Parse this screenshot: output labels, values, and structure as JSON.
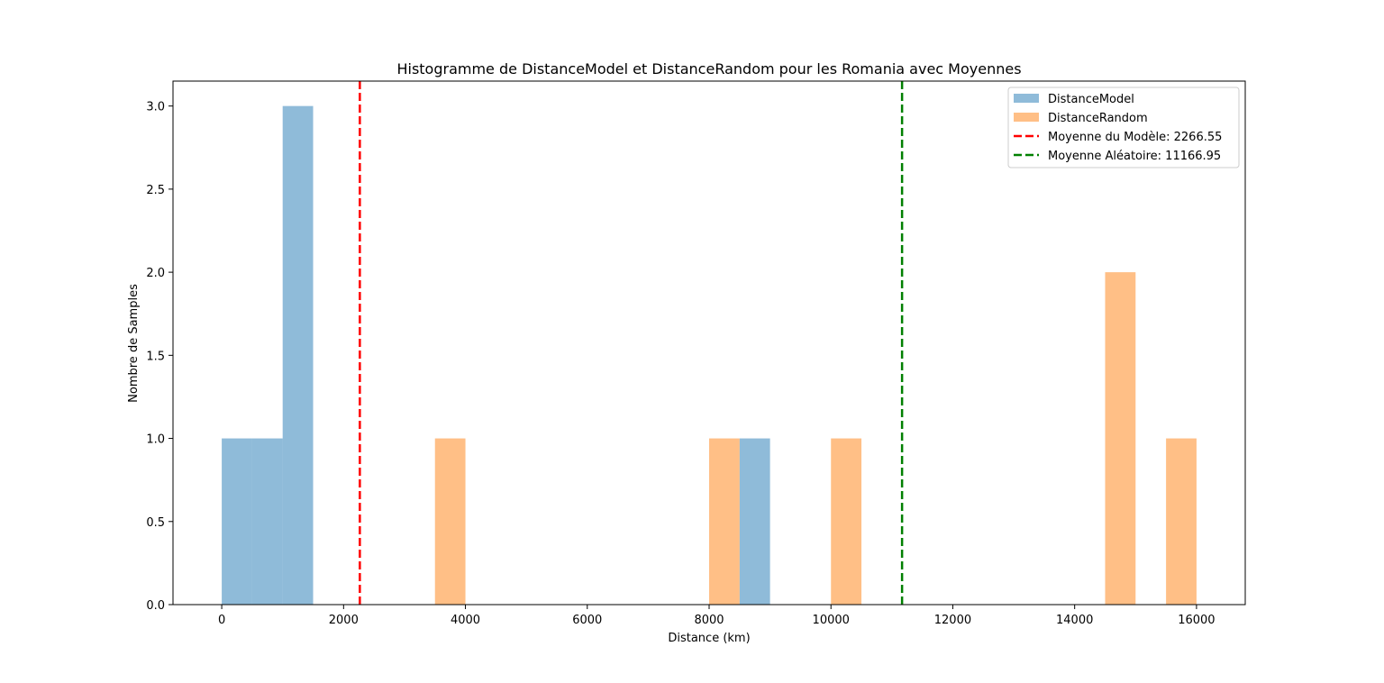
{
  "chart_data": {
    "type": "bar",
    "title": "Histogramme de DistanceModel et DistanceRandom pour les Romania avec Moyennes",
    "xlabel": "Distance (km)",
    "ylabel": "Nombre de Samples",
    "xlim": [
      -800,
      16800
    ],
    "ylim": [
      0,
      3.15
    ],
    "xticks": [
      0,
      2000,
      4000,
      6000,
      8000,
      10000,
      12000,
      14000,
      16000
    ],
    "xtick_labels": [
      "0",
      "2000",
      "4000",
      "6000",
      "8000",
      "10000",
      "12000",
      "14000",
      "16000"
    ],
    "yticks": [
      0,
      0.5,
      1.0,
      1.5,
      2.0,
      2.5,
      3.0
    ],
    "ytick_labels": [
      "0.0",
      "0.5",
      "1.0",
      "1.5",
      "2.0",
      "2.5",
      "3.0"
    ],
    "grid": false,
    "legend_position": "top-right",
    "series": [
      {
        "name": "DistanceModel",
        "color": "#1f77b4",
        "alpha": 0.5,
        "bins": [
          {
            "x0": 0,
            "x1": 500,
            "count": 1
          },
          {
            "x0": 500,
            "x1": 1000,
            "count": 1
          },
          {
            "x0": 1000,
            "x1": 1500,
            "count": 3
          },
          {
            "x0": 8500,
            "x1": 9000,
            "count": 1
          }
        ]
      },
      {
        "name": "DistanceRandom",
        "color": "#ff7f0e",
        "alpha": 0.5,
        "bins": [
          {
            "x0": 3500,
            "x1": 4000,
            "count": 1
          },
          {
            "x0": 8000,
            "x1": 8500,
            "count": 1
          },
          {
            "x0": 10000,
            "x1": 10500,
            "count": 1
          },
          {
            "x0": 14500,
            "x1": 15000,
            "count": 2
          },
          {
            "x0": 15500,
            "x1": 16000,
            "count": 1
          }
        ]
      }
    ],
    "reference_lines": [
      {
        "name": "Moyenne du Modèle: 2266.55",
        "value": 2266.55,
        "color": "#ff0000",
        "style": "dashed"
      },
      {
        "name": "Moyenne Aléatoire: 11166.95",
        "value": 11166.95,
        "color": "#008000",
        "style": "dashed"
      }
    ]
  }
}
